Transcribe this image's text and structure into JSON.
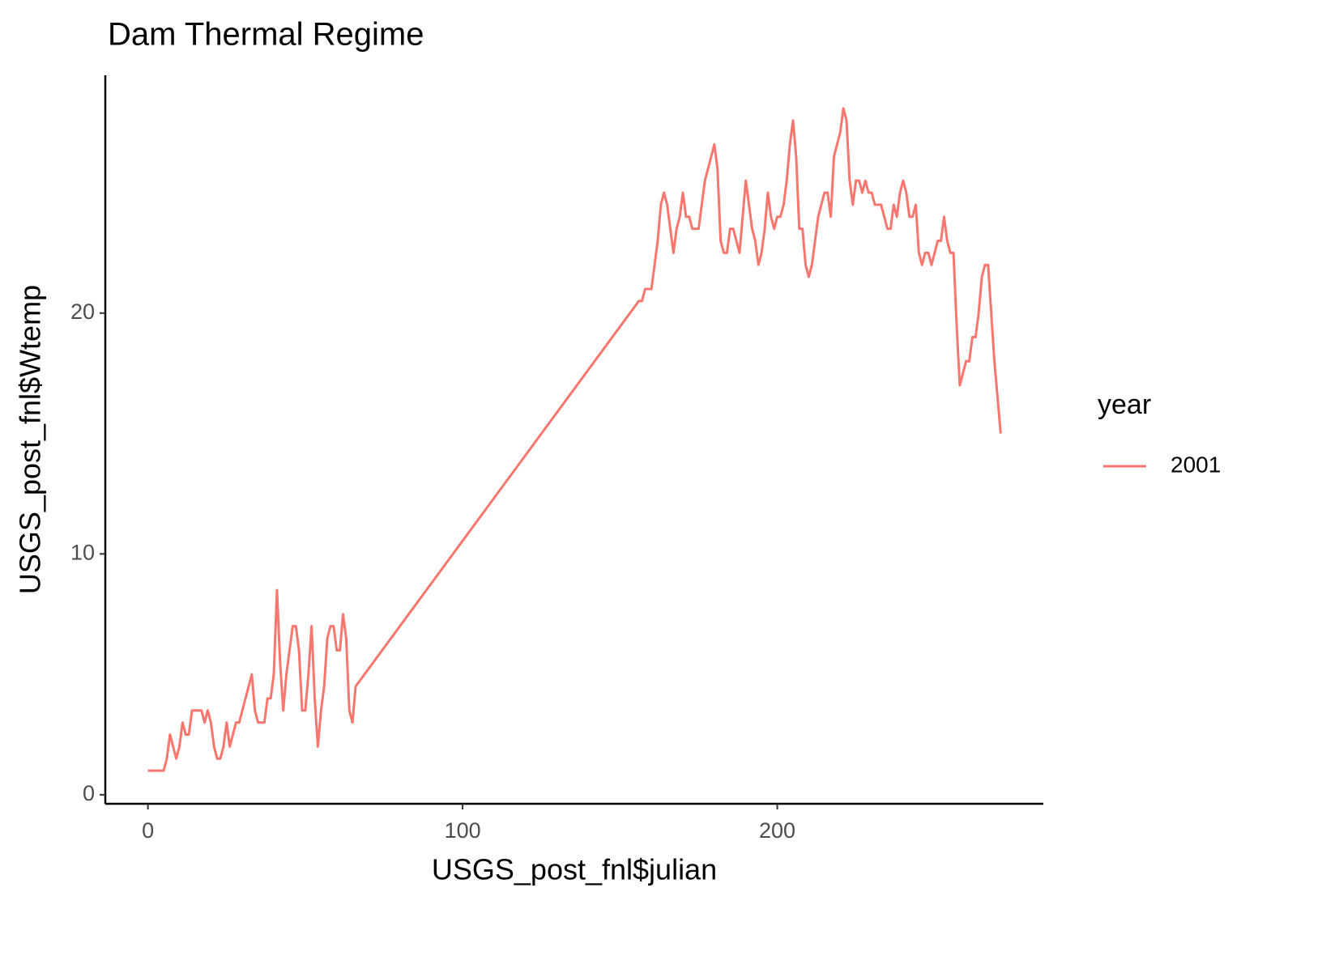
{
  "chart_data": {
    "type": "line",
    "title": "Dam Thermal Regime",
    "x_label": "USGS_post_fnl$julian",
    "y_label": "USGS_post_fnl$Wtemp",
    "legend_title": "year",
    "x": [
      0,
      1,
      2,
      3,
      4,
      5,
      6,
      7,
      8,
      9,
      10,
      11,
      12,
      13,
      14,
      15,
      16,
      17,
      18,
      19,
      20,
      21,
      22,
      23,
      24,
      25,
      26,
      27,
      28,
      29,
      30,
      31,
      32,
      33,
      34,
      35,
      36,
      37,
      38,
      39,
      40,
      41,
      42,
      43,
      44,
      45,
      46,
      47,
      48,
      49,
      50,
      51,
      52,
      53,
      54,
      55,
      56,
      57,
      58,
      59,
      60,
      61,
      62,
      63,
      64,
      65,
      66,
      156,
      157,
      158,
      159,
      160,
      161,
      162,
      163,
      164,
      165,
      166,
      167,
      168,
      169,
      170,
      171,
      172,
      173,
      174,
      175,
      176,
      177,
      178,
      179,
      180,
      181,
      182,
      183,
      184,
      185,
      186,
      187,
      188,
      189,
      190,
      191,
      192,
      193,
      194,
      195,
      196,
      197,
      198,
      199,
      200,
      201,
      202,
      203,
      204,
      205,
      206,
      207,
      208,
      209,
      210,
      211,
      212,
      213,
      214,
      215,
      216,
      217,
      218,
      219,
      220,
      221,
      222,
      223,
      224,
      225,
      226,
      227,
      228,
      229,
      230,
      231,
      232,
      233,
      234,
      235,
      236,
      237,
      238,
      239,
      240,
      241,
      242,
      243,
      244,
      245,
      246,
      247,
      248,
      249,
      250,
      251,
      252,
      253,
      254,
      255,
      256,
      257,
      258,
      259,
      260,
      261,
      262,
      263,
      264,
      265,
      266,
      267,
      268,
      269,
      270,
      271
    ],
    "series": [
      {
        "name": "2001",
        "color": "#F8766D",
        "values": [
          1,
          1,
          1,
          1,
          1,
          1,
          1.5,
          2.5,
          2,
          1.5,
          2,
          3,
          2.5,
          2.5,
          3.5,
          3.5,
          3.5,
          3.5,
          3,
          3.5,
          3,
          2,
          1.5,
          1.5,
          2,
          3,
          2,
          2.5,
          3,
          3,
          3.5,
          4,
          4.5,
          5,
          3.5,
          3,
          3,
          3,
          4,
          4,
          5,
          8.5,
          5.5,
          3.5,
          5,
          6,
          7,
          7,
          6,
          3.5,
          3.5,
          5,
          7,
          4,
          2,
          3.5,
          4.5,
          6.5,
          7,
          7,
          6,
          6,
          7.5,
          6.5,
          3.5,
          3,
          4.5,
          20.5,
          20.5,
          21,
          21,
          21,
          22,
          23,
          24.5,
          25,
          24.5,
          23.5,
          22.5,
          23.5,
          24,
          25,
          24,
          24,
          23.5,
          23.5,
          23.5,
          24.5,
          25.5,
          26,
          26.5,
          27,
          26,
          23,
          22.5,
          22.5,
          23.5,
          23.5,
          23,
          22.5,
          24,
          25.5,
          24.5,
          23.5,
          23,
          22,
          22.5,
          23.5,
          25,
          24,
          23.5,
          24,
          24,
          24.5,
          25.5,
          27,
          28,
          26.5,
          23.5,
          23.5,
          22,
          21.5,
          22,
          23,
          24,
          24.5,
          25,
          25,
          24,
          26.5,
          27,
          27.5,
          28.5,
          28,
          25.5,
          24.5,
          25.5,
          25.5,
          25,
          25.5,
          25,
          25,
          24.5,
          24.5,
          24.5,
          24,
          23.5,
          23.5,
          24.5,
          24,
          25,
          25.5,
          25,
          24,
          24,
          24.5,
          22.5,
          22,
          22.5,
          22.5,
          22,
          22.5,
          23,
          23,
          24,
          23,
          22.5,
          22.5,
          19.5,
          17,
          17.5,
          18,
          18,
          19,
          19,
          20,
          21.5,
          22,
          22,
          20,
          18,
          16.5,
          15
        ]
      }
    ],
    "xlim": [
      -13.55,
      284.55
    ],
    "xticks": [
      0,
      100,
      200
    ],
    "ylim": [
      -0.375,
      29.875
    ],
    "yticks": [
      0,
      10,
      20
    ],
    "grid": false
  }
}
